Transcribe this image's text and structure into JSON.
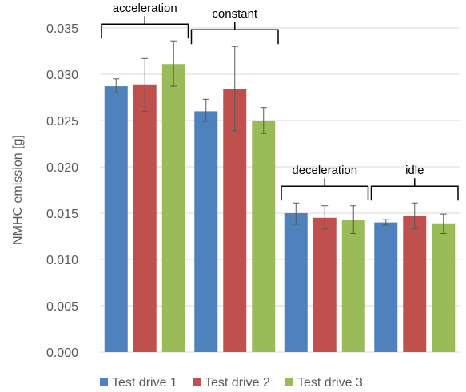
{
  "chart_data": {
    "type": "bar",
    "categories": [
      "acceleration",
      "constant",
      "deceleration",
      "idle"
    ],
    "ylabel": "NMHC emission [g]",
    "ylim": [
      0,
      0.035
    ],
    "yticks": [
      "0.000",
      "0.005",
      "0.010",
      "0.015",
      "0.020",
      "0.025",
      "0.030",
      "0.035"
    ],
    "series": [
      {
        "name": "Test drive 1",
        "color": "#4F81BD",
        "values": [
          0.0287,
          0.026,
          0.015,
          0.014
        ],
        "err_low": [
          0.028,
          0.0249,
          0.0138,
          0.0137
        ],
        "err_high": [
          0.0295,
          0.0273,
          0.0161,
          0.0143
        ]
      },
      {
        "name": "Test drive 2",
        "color": "#C0504D",
        "values": [
          0.0289,
          0.0284,
          0.0145,
          0.0147
        ],
        "err_low": [
          0.026,
          0.0239,
          0.0133,
          0.0133
        ],
        "err_high": [
          0.0317,
          0.033,
          0.0158,
          0.0161
        ]
      },
      {
        "name": "Test drive 3",
        "color": "#9BBB59",
        "values": [
          0.0311,
          0.025,
          0.0143,
          0.0139
        ],
        "err_low": [
          0.0287,
          0.0236,
          0.0128,
          0.0128
        ],
        "err_high": [
          0.0336,
          0.0264,
          0.0158,
          0.0149
        ]
      }
    ],
    "legend_position": "bottom",
    "gridlines": true,
    "error_bars": true,
    "grid_color": "#d9d9d9"
  }
}
